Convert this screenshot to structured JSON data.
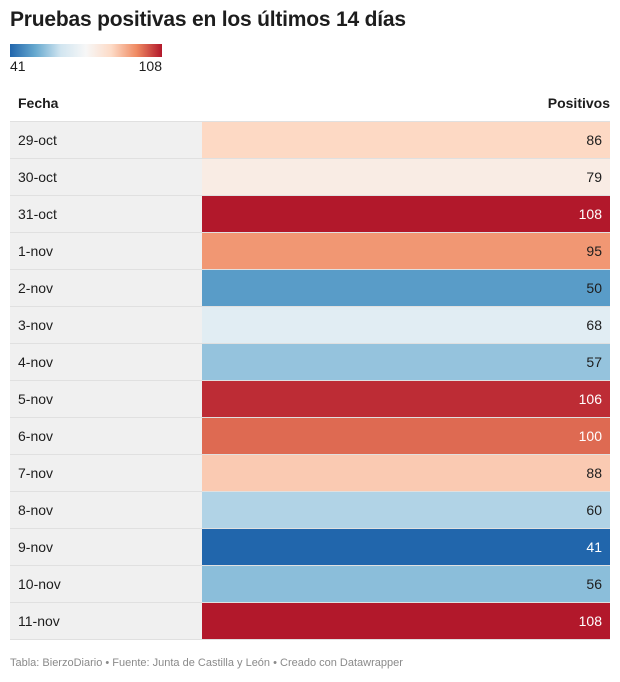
{
  "title": "Pruebas positivas en los últimos 14 días",
  "legend": {
    "min_label": "41",
    "max_label": "108"
  },
  "columns": {
    "fecha": "Fecha",
    "positivos": "Positivos"
  },
  "footer": "Tabla: BierzoDiario • Fuente: Junta de Castilla y León • Creado con Datawrapper",
  "colors": {
    "scale": [
      "#2166ac",
      "#67a9cf",
      "#d1e5f0",
      "#f7f7f7",
      "#fddbc7",
      "#ef8a62",
      "#b2182b"
    ],
    "date_cell_bg": "#f0f0f0"
  },
  "chart_data": {
    "type": "table",
    "title": "Pruebas positivas en los últimos 14 días",
    "categories": [
      "29-oct",
      "30-oct",
      "31-oct",
      "1-nov",
      "2-nov",
      "3-nov",
      "4-nov",
      "5-nov",
      "6-nov",
      "7-nov",
      "8-nov",
      "9-nov",
      "10-nov",
      "11-nov"
    ],
    "values": [
      86,
      79,
      108,
      95,
      50,
      68,
      57,
      106,
      100,
      88,
      60,
      41,
      56,
      108
    ],
    "color_range": [
      41,
      108
    ]
  }
}
